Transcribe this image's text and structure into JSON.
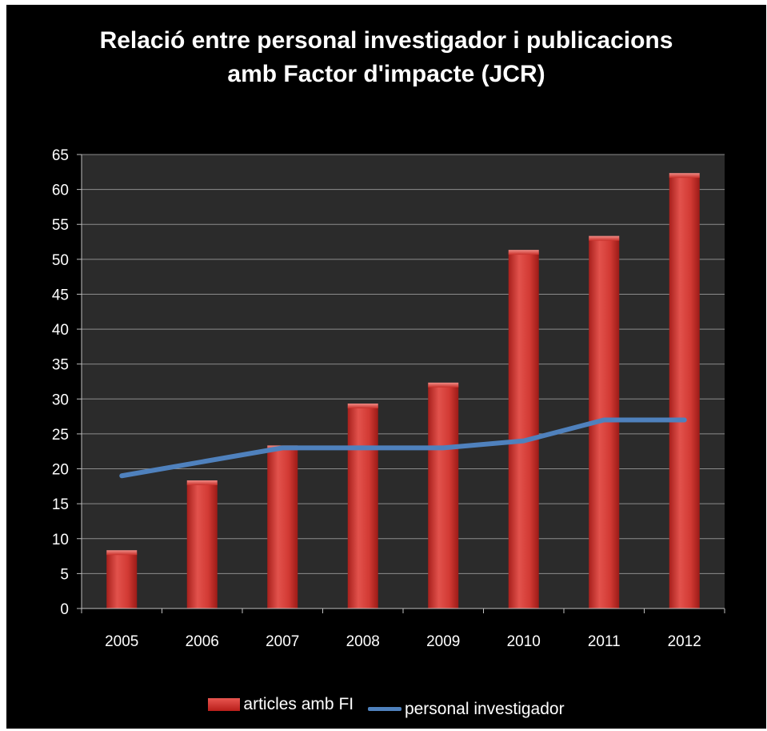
{
  "chart_data": {
    "type": "bar",
    "title_lines": [
      "Relació entre personal investigador i publicacions",
      "amb Factor d'impacte (JCR)"
    ],
    "categories": [
      "2005",
      "2006",
      "2007",
      "2008",
      "2009",
      "2010",
      "2011",
      "2012"
    ],
    "series": [
      {
        "name": "articles amb FI",
        "kind": "bar",
        "color": "#d9403a",
        "values": [
          8,
          18,
          23,
          29,
          32,
          51,
          53,
          62
        ]
      },
      {
        "name": "personal investigador",
        "kind": "line",
        "color": "#4f81bd",
        "values": [
          19,
          21,
          23,
          23,
          23,
          24,
          27,
          27
        ]
      }
    ],
    "yticks": [
      0,
      5,
      10,
      15,
      20,
      25,
      30,
      35,
      40,
      45,
      50,
      55,
      60,
      65
    ],
    "ylim": [
      0,
      65
    ],
    "grid": true,
    "legend_position": "bottom",
    "colors": {
      "background": "#000000",
      "plot_area": "#2b2b2b",
      "gridline": "#8c8c8c",
      "text": "#ffffff"
    }
  }
}
